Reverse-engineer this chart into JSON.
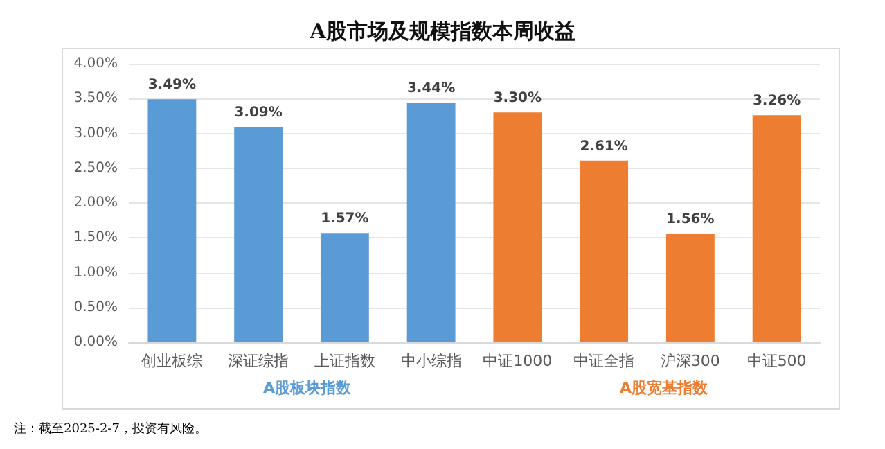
{
  "chart_data": {
    "type": "bar",
    "title": "A股市场及规模指数本周收益",
    "categories": [
      "创业板综",
      "深证综指",
      "上证指数",
      "中小综指",
      "中证1000",
      "中证全指",
      "沪深300",
      "中证500"
    ],
    "values": [
      3.49,
      3.09,
      1.57,
      3.44,
      3.3,
      2.61,
      1.56,
      3.26
    ],
    "value_labels": [
      "3.49%",
      "3.09%",
      "1.57%",
      "3.44%",
      "3.30%",
      "2.61%",
      "1.56%",
      "3.26%"
    ],
    "colors": [
      "#5b9bd5",
      "#5b9bd5",
      "#5b9bd5",
      "#5b9bd5",
      "#ed7d31",
      "#ed7d31",
      "#ed7d31",
      "#ed7d31"
    ],
    "ylim": [
      0,
      4
    ],
    "yticks": [
      {
        "value": 0,
        "label": "0.00%"
      },
      {
        "value": 0.5,
        "label": "0.50%"
      },
      {
        "value": 1,
        "label": "1.00%"
      },
      {
        "value": 1.5,
        "label": "1.50%"
      },
      {
        "value": 2,
        "label": "2.00%"
      },
      {
        "value": 2.5,
        "label": "2.50%"
      },
      {
        "value": 3,
        "label": "3.00%"
      },
      {
        "value": 3.5,
        "label": "3.50%"
      },
      {
        "value": 4,
        "label": "4.00%"
      }
    ],
    "grid": "y",
    "annotations": [
      "A股板块指数",
      "A股宽基指数",
      "注：截至2025-2-7，投资有风险。"
    ]
  }
}
